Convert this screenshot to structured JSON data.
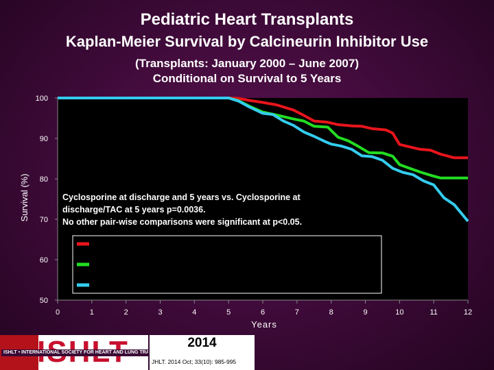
{
  "header": {
    "title": "Pediatric Heart Transplants",
    "subtitle": "Kaplan-Meier Survival by Calcineurin Inhibitor Use",
    "note_line1": "(Transplants: January 2000 – June 2007)",
    "note_line2": "Conditional on Survival to 5 Years"
  },
  "annotation": {
    "line1": "Cyclosporine at discharge and 5 years vs. Cyclosporine at",
    "line2": "discharge/TAC at 5 years p=0.0036.",
    "line3": "No other pair-wise comparisons were significant at p<0.05."
  },
  "footer": {
    "logo_text": "ISHLT",
    "org_name": "ISHLT • INTERNATIONAL SOCIETY FOR HEART AND LUNG TRANSPLANTATION",
    "year": "2014",
    "citation": "JHLT. 2014 Oct; 33(10): 985-995"
  },
  "chart_data": {
    "type": "line",
    "title": "",
    "xlabel": "Years",
    "ylabel": "Survival (%)",
    "xlim": [
      0,
      12
    ],
    "ylim": [
      50,
      100
    ],
    "xticks": [
      0,
      1,
      2,
      3,
      4,
      5,
      6,
      7,
      8,
      9,
      10,
      11,
      12
    ],
    "yticks": [
      50,
      60,
      70,
      80,
      90,
      100
    ],
    "grid": false,
    "legend_position": "lower-middle",
    "legend_labels_visible": false,
    "series": [
      {
        "color": "#e8141c",
        "x": [
          0,
          5,
          5.3,
          5.6,
          6.0,
          6.4,
          6.9,
          7.2,
          7.5,
          7.9,
          8.2,
          8.6,
          8.9,
          9.2,
          9.6,
          9.8,
          10.0,
          10.3,
          10.6,
          10.9,
          11.2,
          11.6,
          12.0
        ],
        "y": [
          100,
          100,
          99.9,
          99.4,
          98.9,
          98.3,
          97.0,
          95.7,
          94.3,
          94.0,
          93.4,
          93.1,
          93.0,
          92.4,
          92.1,
          91.3,
          88.5,
          87.9,
          87.3,
          87.1,
          86.1,
          85.2,
          85.2
        ]
      },
      {
        "color": "#22dd22",
        "x": [
          0,
          5,
          5.3,
          5.6,
          6.0,
          6.4,
          6.9,
          7.2,
          7.5,
          7.9,
          8.2,
          8.5,
          8.8,
          9.1,
          9.5,
          9.8,
          10.0,
          10.3,
          10.6,
          10.9,
          11.2,
          11.6,
          12.0
        ],
        "y": [
          100,
          100,
          99.3,
          98.0,
          96.5,
          95.8,
          94.8,
          94.3,
          93.0,
          92.8,
          90.3,
          89.4,
          88.0,
          86.5,
          86.4,
          85.6,
          83.5,
          82.6,
          81.7,
          80.9,
          80.2,
          80.2,
          80.2
        ]
      },
      {
        "color": "#33ccee",
        "x": [
          0,
          5,
          5.3,
          5.6,
          6.0,
          6.3,
          6.6,
          6.9,
          7.2,
          7.5,
          7.8,
          8.0,
          8.3,
          8.6,
          8.9,
          9.2,
          9.5,
          9.8,
          10.1,
          10.4,
          10.7,
          11.0,
          11.3,
          11.6,
          12.0
        ],
        "y": [
          100,
          100,
          99.2,
          97.8,
          96.2,
          95.9,
          94.3,
          93.2,
          91.6,
          90.5,
          89.3,
          88.6,
          88.1,
          87.3,
          85.7,
          85.5,
          84.6,
          82.6,
          81.6,
          81.0,
          79.5,
          78.5,
          75.3,
          73.6,
          69.5
        ]
      }
    ]
  }
}
